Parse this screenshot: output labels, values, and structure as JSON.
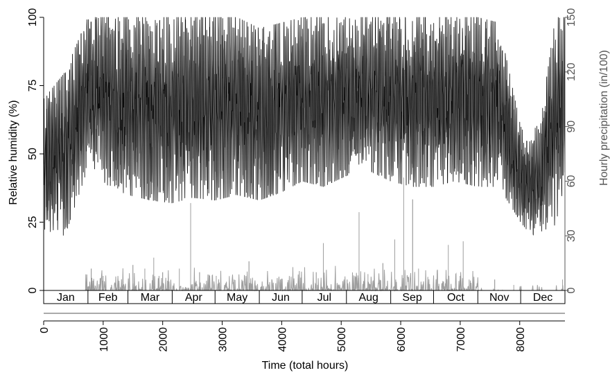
{
  "chart_data": {
    "type": "line",
    "title": "",
    "xlabel": "Time (total hours)",
    "ylabel_left": "Relative humidity (%)",
    "ylabel_right": "Hourly precipitation (in/100)",
    "xlim": [
      0,
      8760
    ],
    "ylim_left": [
      0,
      100
    ],
    "ylim_right": [
      0,
      150
    ],
    "x_ticks": [
      0,
      1000,
      2000,
      3000,
      4000,
      5000,
      6000,
      7000,
      8000
    ],
    "y_left_ticks": [
      0,
      25,
      50,
      75,
      100
    ],
    "y_right_ticks": [
      0,
      30,
      60,
      90,
      120,
      150
    ],
    "months": [
      {
        "label": "Jan",
        "start": 0,
        "end": 744
      },
      {
        "label": "Feb",
        "start": 744,
        "end": 1416
      },
      {
        "label": "Mar",
        "start": 1416,
        "end": 2160
      },
      {
        "label": "Apr",
        "start": 2160,
        "end": 2880
      },
      {
        "label": "May",
        "start": 2880,
        "end": 3624
      },
      {
        "label": "Jun",
        "start": 3624,
        "end": 4344
      },
      {
        "label": "Jul",
        "start": 4344,
        "end": 5088
      },
      {
        "label": "Aug",
        "start": 5088,
        "end": 5832
      },
      {
        "label": "Sep",
        "start": 5832,
        "end": 6552
      },
      {
        "label": "Oct",
        "start": 6552,
        "end": 7296
      },
      {
        "label": "Nov",
        "start": 7296,
        "end": 8016
      },
      {
        "label": "Dec",
        "start": 8016,
        "end": 8760
      }
    ],
    "series": [
      {
        "color": "#000000",
        "axis": "left",
        "envelope_x": [
          0,
          360,
          744,
          1100,
          1416,
          1800,
          2160,
          2500,
          2880,
          3250,
          3624,
          4000,
          4344,
          4700,
          5088,
          5450,
          5832,
          6200,
          6552,
          6900,
          7296,
          7650,
          8016,
          8200,
          8400,
          8600,
          8760
        ],
        "envelope_low": [
          22,
          20,
          45,
          38,
          35,
          33,
          32,
          34,
          33,
          35,
          33,
          36,
          40,
          38,
          42,
          44,
          40,
          38,
          38,
          40,
          38,
          38,
          25,
          20,
          22,
          24,
          30
        ],
        "envelope_high": [
          70,
          80,
          100,
          100,
          100,
          100,
          100,
          100,
          100,
          100,
          96,
          98,
          100,
          100,
          100,
          100,
          100,
          100,
          100,
          100,
          100,
          98,
          60,
          55,
          70,
          100,
          100
        ]
      },
      {
        "color": "#9e9e9e",
        "axis": "right",
        "spikes": [
          {
            "x": 800,
            "y": 12
          },
          {
            "x": 1000,
            "y": 8
          },
          {
            "x": 1250,
            "y": 6
          },
          {
            "x": 1500,
            "y": 14
          },
          {
            "x": 1700,
            "y": 12
          },
          {
            "x": 1850,
            "y": 18
          },
          {
            "x": 2000,
            "y": 10
          },
          {
            "x": 2280,
            "y": 12
          },
          {
            "x": 2470,
            "y": 48
          },
          {
            "x": 2620,
            "y": 10
          },
          {
            "x": 2900,
            "y": 8
          },
          {
            "x": 3200,
            "y": 6
          },
          {
            "x": 3450,
            "y": 16
          },
          {
            "x": 3900,
            "y": 4
          },
          {
            "x": 4300,
            "y": 3
          },
          {
            "x": 4580,
            "y": 10
          },
          {
            "x": 4700,
            "y": 26
          },
          {
            "x": 4900,
            "y": 8
          },
          {
            "x": 5100,
            "y": 6
          },
          {
            "x": 5300,
            "y": 43
          },
          {
            "x": 5450,
            "y": 9
          },
          {
            "x": 5700,
            "y": 15
          },
          {
            "x": 5900,
            "y": 28
          },
          {
            "x": 6050,
            "y": 62
          },
          {
            "x": 6200,
            "y": 50
          },
          {
            "x": 6300,
            "y": 12
          },
          {
            "x": 6800,
            "y": 25
          },
          {
            "x": 7000,
            "y": 8
          },
          {
            "x": 7050,
            "y": 27
          },
          {
            "x": 7150,
            "y": 6
          },
          {
            "x": 7580,
            "y": 6
          },
          {
            "x": 7900,
            "y": 3
          },
          {
            "x": 8720,
            "y": 6
          }
        ]
      }
    ]
  }
}
